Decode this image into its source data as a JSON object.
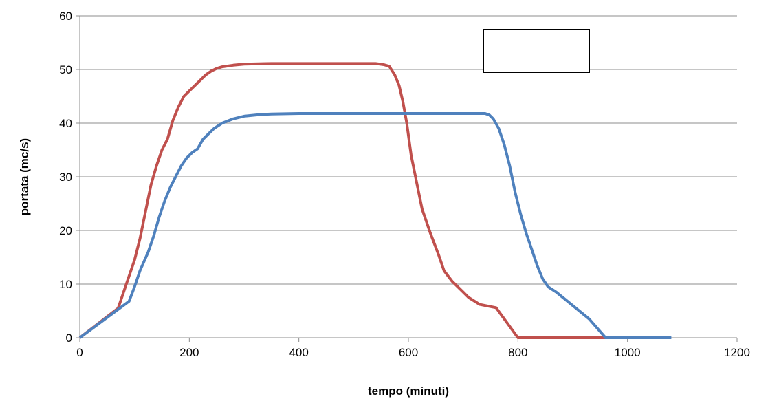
{
  "chart_data": {
    "type": "line",
    "title": "",
    "xlabel": "tempo (minuti)",
    "ylabel": "portata (mc/s)",
    "xlim": [
      0,
      1200
    ],
    "ylim": [
      0,
      60
    ],
    "x_ticks": [
      0,
      200,
      400,
      600,
      800,
      1000,
      1200
    ],
    "y_ticks": [
      0,
      10,
      20,
      30,
      40,
      50,
      60
    ],
    "grid": "horizontal",
    "legend": "top-right, empty box",
    "series": [
      {
        "color": "#C0504D",
        "points": [
          [
            0,
            0
          ],
          [
            70,
            5.5
          ],
          [
            85,
            10
          ],
          [
            100,
            14.5
          ],
          [
            110,
            18.5
          ],
          [
            120,
            23.5
          ],
          [
            130,
            28.5
          ],
          [
            140,
            32
          ],
          [
            150,
            35
          ],
          [
            160,
            37
          ],
          [
            170,
            40.5
          ],
          [
            180,
            43
          ],
          [
            190,
            45
          ],
          [
            200,
            46
          ],
          [
            210,
            47
          ],
          [
            220,
            48
          ],
          [
            230,
            49
          ],
          [
            240,
            49.7
          ],
          [
            250,
            50.2
          ],
          [
            260,
            50.5
          ],
          [
            280,
            50.8
          ],
          [
            300,
            51
          ],
          [
            350,
            51.1
          ],
          [
            400,
            51.1
          ],
          [
            450,
            51.1
          ],
          [
            500,
            51.1
          ],
          [
            540,
            51.1
          ],
          [
            555,
            50.9
          ],
          [
            565,
            50.6
          ],
          [
            575,
            49
          ],
          [
            583,
            47
          ],
          [
            590,
            44
          ],
          [
            597,
            40
          ],
          [
            605,
            34
          ],
          [
            615,
            29
          ],
          [
            625,
            24
          ],
          [
            640,
            19.5
          ],
          [
            655,
            15.5
          ],
          [
            665,
            12.5
          ],
          [
            680,
            10.5
          ],
          [
            700,
            8.5
          ],
          [
            710,
            7.5
          ],
          [
            730,
            6.2
          ],
          [
            760,
            5.6
          ],
          [
            800,
            0
          ],
          [
            850,
            0
          ],
          [
            900,
            0
          ],
          [
            960,
            0
          ]
        ]
      },
      {
        "color": "#4F81BD",
        "points": [
          [
            0,
            0
          ],
          [
            90,
            6.8
          ],
          [
            100,
            9.5
          ],
          [
            110,
            12.5
          ],
          [
            125,
            16
          ],
          [
            135,
            19
          ],
          [
            145,
            22.5
          ],
          [
            155,
            25.5
          ],
          [
            165,
            28
          ],
          [
            175,
            30
          ],
          [
            185,
            32
          ],
          [
            195,
            33.5
          ],
          [
            205,
            34.5
          ],
          [
            215,
            35.2
          ],
          [
            225,
            37
          ],
          [
            235,
            38
          ],
          [
            245,
            39
          ],
          [
            260,
            40
          ],
          [
            280,
            40.8
          ],
          [
            300,
            41.3
          ],
          [
            330,
            41.6
          ],
          [
            350,
            41.7
          ],
          [
            400,
            41.8
          ],
          [
            500,
            41.8
          ],
          [
            600,
            41.8
          ],
          [
            700,
            41.8
          ],
          [
            740,
            41.8
          ],
          [
            748,
            41.5
          ],
          [
            755,
            40.8
          ],
          [
            765,
            39
          ],
          [
            775,
            36
          ],
          [
            785,
            32
          ],
          [
            795,
            27
          ],
          [
            805,
            23
          ],
          [
            815,
            19.5
          ],
          [
            825,
            16.5
          ],
          [
            835,
            13.5
          ],
          [
            845,
            11
          ],
          [
            855,
            9.5
          ],
          [
            870,
            8.5
          ],
          [
            900,
            6
          ],
          [
            930,
            3.5
          ],
          [
            960,
            0
          ],
          [
            1000,
            0
          ],
          [
            1040,
            0
          ],
          [
            1080,
            0
          ]
        ]
      }
    ]
  }
}
